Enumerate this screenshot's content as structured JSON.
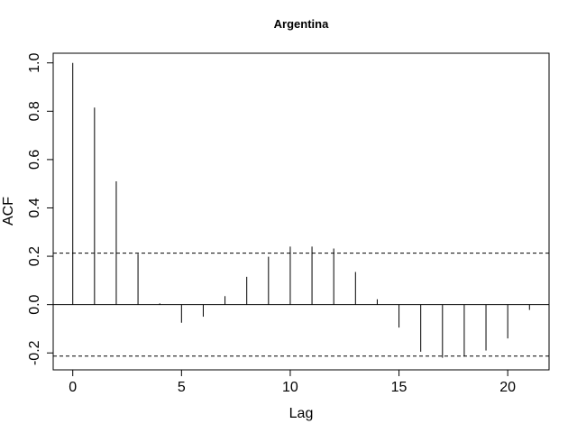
{
  "chart_data": {
    "type": "bar",
    "title": "Argentina",
    "xlabel": "Lag",
    "ylabel": "ACF",
    "xlim": [
      -0.9,
      21.9
    ],
    "ylim": [
      -0.27,
      1.04
    ],
    "x_ticks": [
      0,
      5,
      10,
      15,
      20
    ],
    "y_ticks": [
      -0.2,
      0.0,
      0.2,
      0.4,
      0.6,
      0.8,
      1.0
    ],
    "y_tick_labels": [
      "-0.2",
      "0.0",
      "0.2",
      "0.4",
      "0.6",
      "0.8",
      "1.0"
    ],
    "confidence_bound": 0.213,
    "grid": false,
    "legend": "none",
    "x": [
      0,
      1,
      2,
      3,
      4,
      5,
      6,
      7,
      8,
      9,
      10,
      11,
      12,
      13,
      14,
      15,
      16,
      17,
      18,
      19,
      20,
      21
    ],
    "values": [
      1.0,
      0.815,
      0.51,
      0.21,
      0.005,
      -0.075,
      -0.05,
      0.035,
      0.115,
      0.198,
      0.24,
      0.24,
      0.232,
      0.135,
      0.022,
      -0.095,
      -0.195,
      -0.22,
      -0.215,
      -0.19,
      -0.14,
      -0.022
    ],
    "colors": {
      "lines": "#000000",
      "background": "#ffffff"
    }
  }
}
